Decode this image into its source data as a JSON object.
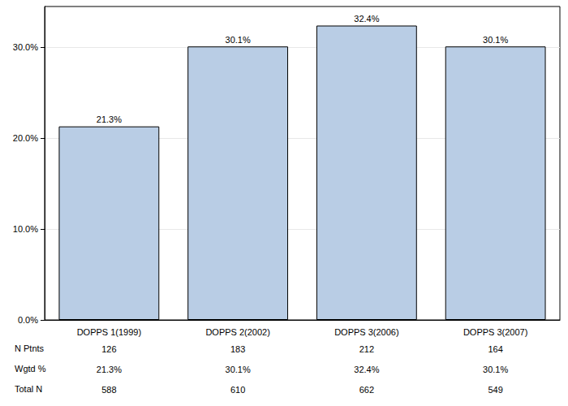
{
  "chart_data": {
    "type": "bar",
    "categories": [
      "DOPPS 1(1999)",
      "DOPPS 2(2002)",
      "DOPPS 3(2006)",
      "DOPPS 3(2007)"
    ],
    "values": [
      21.3,
      30.1,
      32.4,
      30.1
    ],
    "value_labels": [
      "21.3%",
      "30.1%",
      "32.4%",
      "30.1%"
    ],
    "color": "#b9cde5",
    "ylim": [
      0,
      34.5
    ],
    "yticks": [
      {
        "value": 0,
        "label": "0.0%"
      },
      {
        "value": 10,
        "label": "10.0%"
      },
      {
        "value": 20,
        "label": "20.0%"
      },
      {
        "value": 30,
        "label": "30.0%"
      }
    ],
    "grid": true,
    "data_labels": true
  },
  "table": {
    "rows": [
      {
        "label": "N Ptnts",
        "values": [
          "126",
          "183",
          "212",
          "164"
        ]
      },
      {
        "label": "Wgtd %",
        "values": [
          "21.3%",
          "30.1%",
          "32.4%",
          "30.1%"
        ]
      },
      {
        "label": "Total N",
        "values": [
          "588",
          "610",
          "662",
          "549"
        ]
      }
    ]
  }
}
